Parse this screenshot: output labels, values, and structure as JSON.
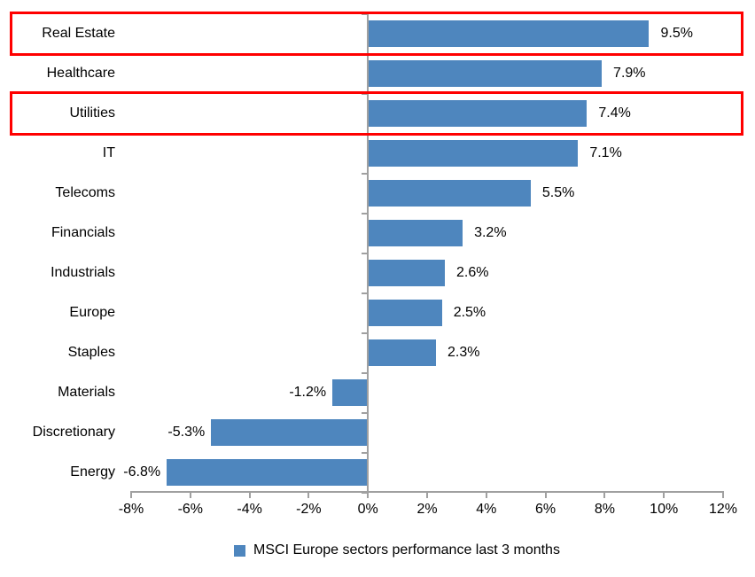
{
  "chart_data": {
    "type": "bar",
    "orientation": "horizontal",
    "title": "",
    "categories": [
      "Real Estate",
      "Healthcare",
      "Utilities",
      "IT",
      "Telecoms",
      "Financials",
      "Industrials",
      "Europe",
      "Staples",
      "Materials",
      "Discretionary",
      "Energy"
    ],
    "values": [
      9.5,
      7.9,
      7.4,
      7.1,
      5.5,
      3.2,
      2.6,
      2.5,
      2.3,
      -1.2,
      -5.3,
      -6.8
    ],
    "value_labels": [
      "9.5%",
      "7.9%",
      "7.4%",
      "7.1%",
      "5.5%",
      "3.2%",
      "2.6%",
      "2.5%",
      "2.3%",
      "-1.2%",
      "-5.3%",
      "-6.8%"
    ],
    "x_ticks": [
      -8,
      -6,
      -4,
      -2,
      0,
      2,
      4,
      6,
      8,
      10,
      12
    ],
    "x_tick_labels": [
      "-8%",
      "-6%",
      "-4%",
      "-2%",
      "0%",
      "2%",
      "4%",
      "6%",
      "8%",
      "10%",
      "12%"
    ],
    "xlim": [
      -8,
      12
    ],
    "grid": false,
    "legend": {
      "label": "MSCI Europe sectors performance last 3 months",
      "position": "bottom"
    },
    "colors": {
      "bar": "#4E86BE",
      "axis": "#A0A0A0",
      "text": "#000000",
      "highlight": "#FF0000"
    },
    "highlighted_categories": [
      "Real Estate",
      "Utilities"
    ]
  }
}
